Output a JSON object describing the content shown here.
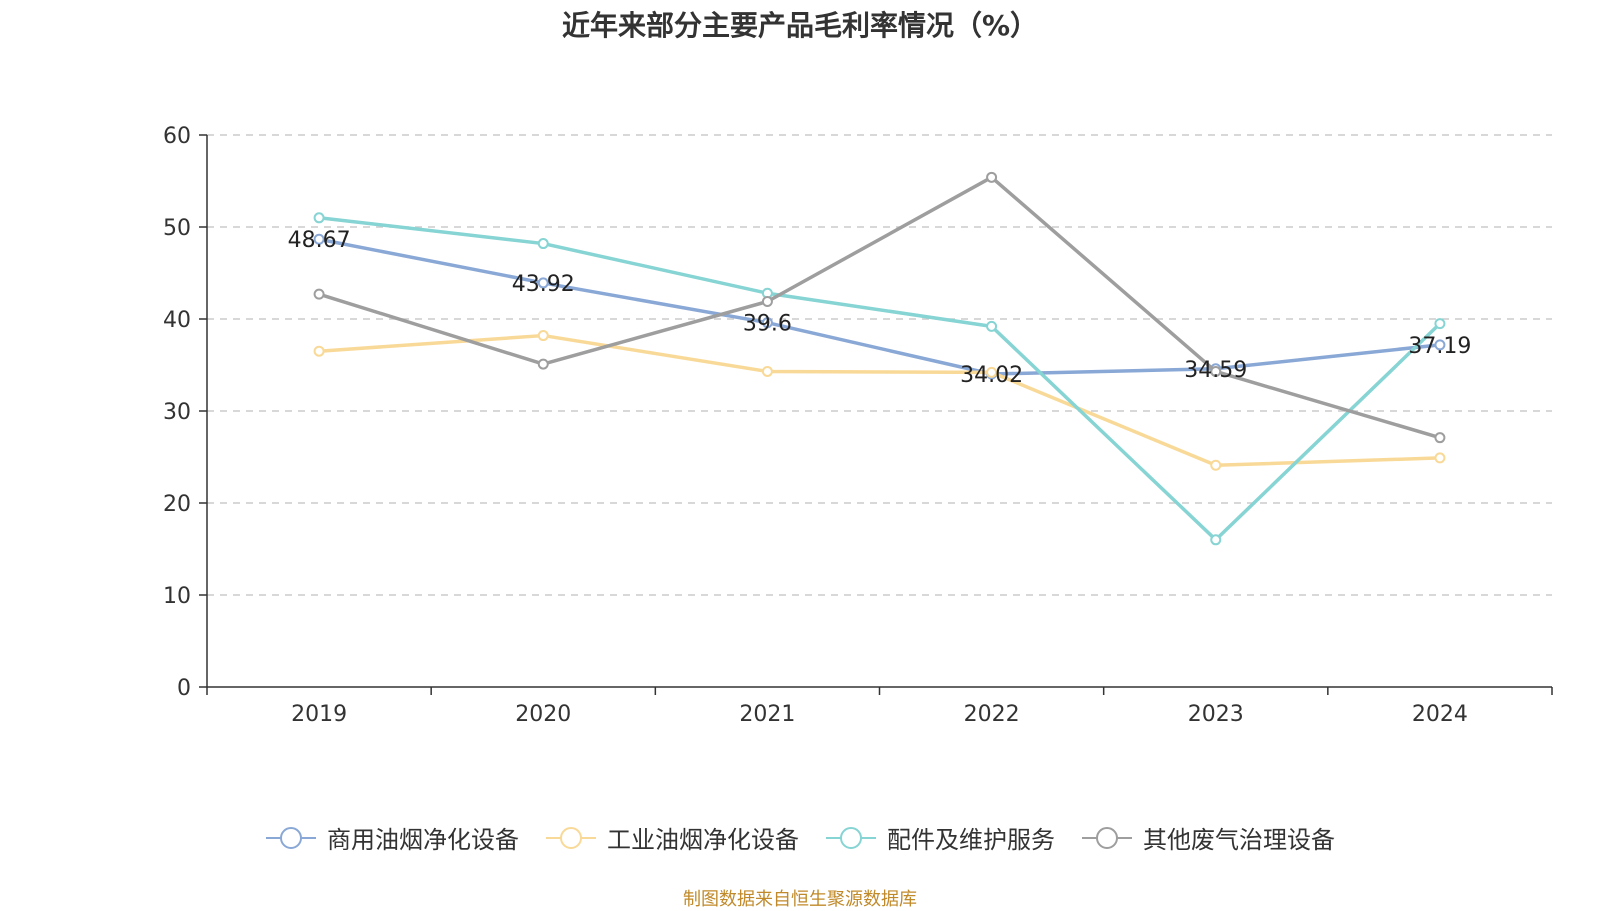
{
  "chart_data": {
    "type": "line",
    "title": "近年来部分主要产品毛利率情况（%）",
    "categories": [
      "2019",
      "2020",
      "2021",
      "2022",
      "2023",
      "2024"
    ],
    "ylim": [
      0,
      60
    ],
    "yticks": [
      0,
      10,
      20,
      30,
      40,
      50,
      60
    ],
    "grid": "horizontal-dashed",
    "legend_position": "bottom",
    "series": [
      {
        "name": "商用油烟净化设备",
        "color": "#8aa8d6",
        "values": [
          48.67,
          43.92,
          39.6,
          34.02,
          34.59,
          37.19
        ],
        "data_labels": [
          "48.67",
          "43.92",
          "39.6",
          "34.02",
          "34.59",
          "37.19"
        ]
      },
      {
        "name": "工业油烟净化设备",
        "color": "#f9d997",
        "values": [
          36.5,
          38.2,
          34.3,
          34.2,
          24.1,
          24.9
        ]
      },
      {
        "name": "配件及维护服务",
        "color": "#86d4d3",
        "values": [
          51.0,
          48.2,
          42.8,
          39.2,
          16.0,
          39.5
        ]
      },
      {
        "name": "其他废气治理设备",
        "color": "#9e9e9e",
        "values": [
          42.7,
          35.1,
          41.9,
          55.4,
          34.3,
          27.1
        ]
      }
    ]
  },
  "source_note": "制图数据来自恒生聚源数据库"
}
